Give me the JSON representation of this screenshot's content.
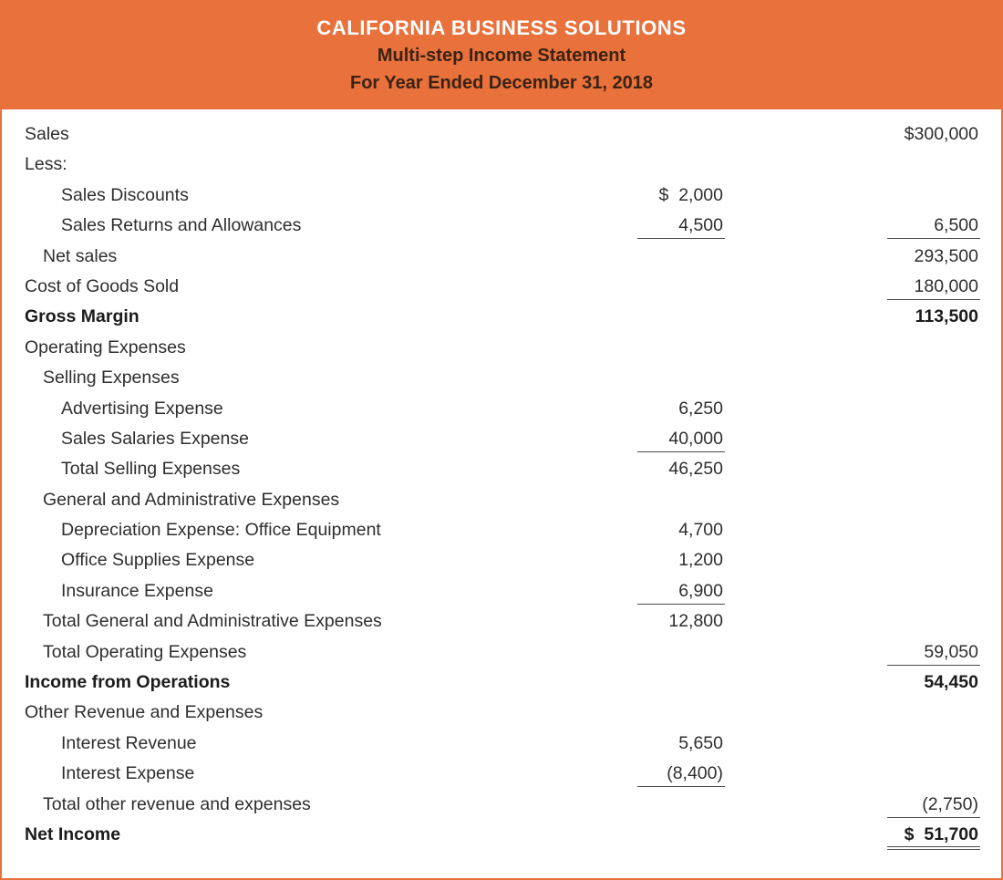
{
  "theme": {
    "accent": "#E8713C",
    "company_color": "#FFFFFF",
    "subtitle_color": "#3B2314",
    "body_text_color": "#2E2E2E",
    "rule_color": "#4D4D4D"
  },
  "header": {
    "company": "CALIFORNIA BUSINESS SOLUTIONS",
    "title": "Multi-step Income Statement",
    "period": "For Year Ended December 31, 2018"
  },
  "statement": {
    "rows": [
      {
        "label": "Sales",
        "indent": 0,
        "right": "$300,000"
      },
      {
        "label": "Less:",
        "indent": 0
      },
      {
        "label": "Sales Discounts",
        "indent": 2,
        "mid": "$  2,000"
      },
      {
        "label": "Sales Returns and Allowances",
        "indent": 2,
        "mid": "4,500",
        "mid_underline": true,
        "right": "6,500",
        "right_underline": true
      },
      {
        "label": "Net sales",
        "indent": 1,
        "right": "293,500"
      },
      {
        "label": "Cost of Goods Sold",
        "indent": 0,
        "right": "180,000",
        "right_underline": true
      },
      {
        "label": "Gross Margin",
        "indent": 0,
        "bold": true,
        "right": "113,500"
      },
      {
        "label": "Operating Expenses",
        "indent": 0
      },
      {
        "label": "Selling Expenses",
        "indent": 1
      },
      {
        "label": "Advertising Expense",
        "indent": 2,
        "mid": "6,250"
      },
      {
        "label": "Sales Salaries Expense",
        "indent": 2,
        "mid": "40,000",
        "mid_underline": true
      },
      {
        "label": "Total Selling Expenses",
        "indent": 2,
        "mid": "46,250"
      },
      {
        "label": "General and Administrative Expenses",
        "indent": 1
      },
      {
        "label": "Depreciation Expense: Office Equipment",
        "indent": 2,
        "mid": "4,700"
      },
      {
        "label": "Office Supplies Expense",
        "indent": 2,
        "mid": "1,200"
      },
      {
        "label": "Insurance Expense",
        "indent": 2,
        "mid": "6,900",
        "mid_underline": true
      },
      {
        "label": "Total General and Administrative Expenses",
        "indent": 1,
        "mid": "12,800"
      },
      {
        "label": "Total Operating Expenses",
        "indent": 1,
        "right": "59,050",
        "right_underline": true
      },
      {
        "label": "Income from Operations",
        "indent": 0,
        "bold": true,
        "right": "54,450"
      },
      {
        "label": "Other Revenue and Expenses",
        "indent": 0
      },
      {
        "label": "Interest Revenue",
        "indent": 2,
        "mid": "5,650"
      },
      {
        "label": "Interest Expense",
        "indent": 2,
        "mid": "(8,400)",
        "mid_underline": true
      },
      {
        "label": "Total other revenue and expenses",
        "indent": 1,
        "right": "(2,750)",
        "right_underline": true
      },
      {
        "label": "Net Income",
        "indent": 0,
        "bold": true,
        "right": "$  51,700",
        "right_double_underline": true
      }
    ]
  }
}
